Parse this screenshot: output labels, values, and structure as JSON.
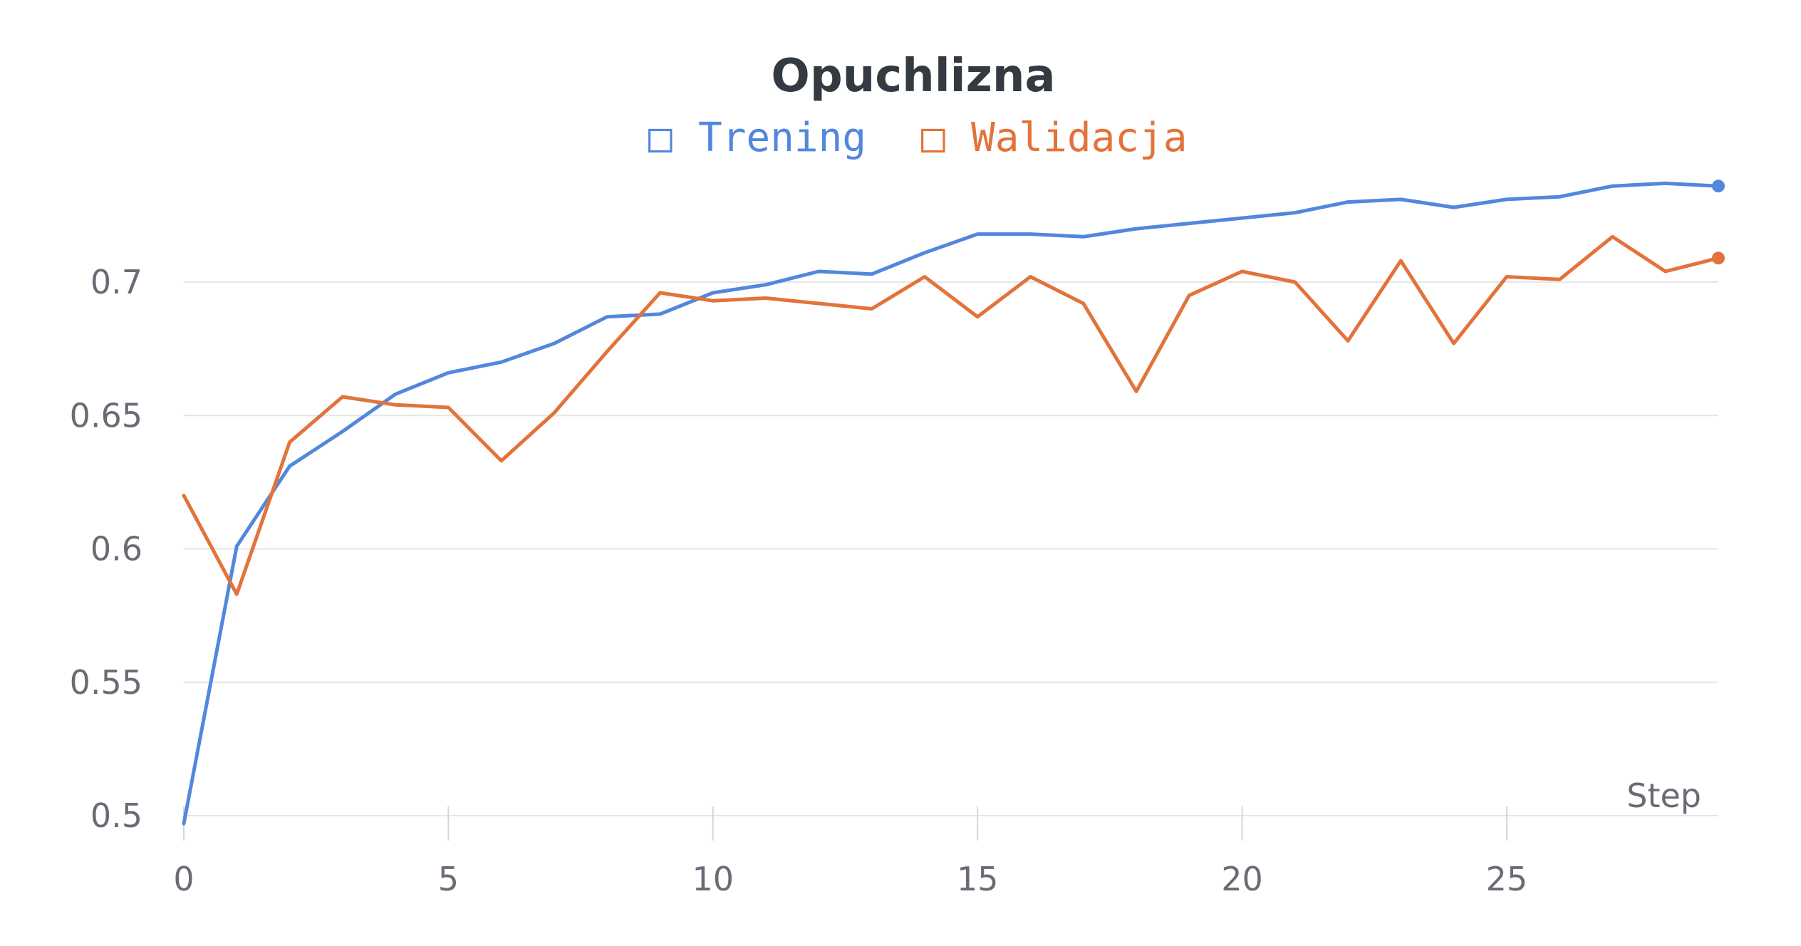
{
  "chart_data": {
    "type": "line",
    "title": "Opuchlizna",
    "xlabel": "Step",
    "ylabel": "",
    "xlim": [
      0,
      29
    ],
    "ylim": [
      0.5,
      0.74
    ],
    "x_ticks": [
      0,
      5,
      10,
      15,
      20,
      25
    ],
    "x_tick_labels": [
      "0",
      "5",
      "10",
      "15",
      "20",
      "25"
    ],
    "y_ticks": [
      0.5,
      0.55,
      0.6,
      0.65,
      0.7
    ],
    "y_tick_labels": [
      "0.5",
      "0.55",
      "0.6",
      "0.65",
      "0.7"
    ],
    "grid": "horizontal",
    "legend": "top-center",
    "x": [
      0,
      1,
      2,
      3,
      4,
      5,
      6,
      7,
      8,
      9,
      10,
      11,
      12,
      13,
      14,
      15,
      16,
      17,
      18,
      19,
      20,
      21,
      22,
      23,
      24,
      25,
      26,
      27,
      28,
      29
    ],
    "series": [
      {
        "name": "Trening",
        "color": "#5387dd",
        "values": [
          0.497,
          0.601,
          0.631,
          0.644,
          0.658,
          0.666,
          0.67,
          0.677,
          0.687,
          0.688,
          0.696,
          0.699,
          0.704,
          0.703,
          0.711,
          0.718,
          0.718,
          0.717,
          0.72,
          0.722,
          0.724,
          0.726,
          0.73,
          0.731,
          0.728,
          0.731,
          0.732,
          0.736,
          0.737,
          0.736
        ]
      },
      {
        "name": "Walidacja",
        "color": "#e2733a",
        "values": [
          0.62,
          0.583,
          0.64,
          0.657,
          0.654,
          0.653,
          0.633,
          0.651,
          0.674,
          0.696,
          0.693,
          0.694,
          0.692,
          0.69,
          0.702,
          0.687,
          0.702,
          0.692,
          0.659,
          0.695,
          0.704,
          0.7,
          0.678,
          0.708,
          0.677,
          0.702,
          0.701,
          0.717,
          0.704,
          0.709
        ]
      }
    ]
  },
  "legend_marker": "□",
  "colors": {
    "grid": "#e6e6e6",
    "tick_text": "#6b6b76",
    "title": "#333a41",
    "axis_tick": "#d6d6d6"
  }
}
